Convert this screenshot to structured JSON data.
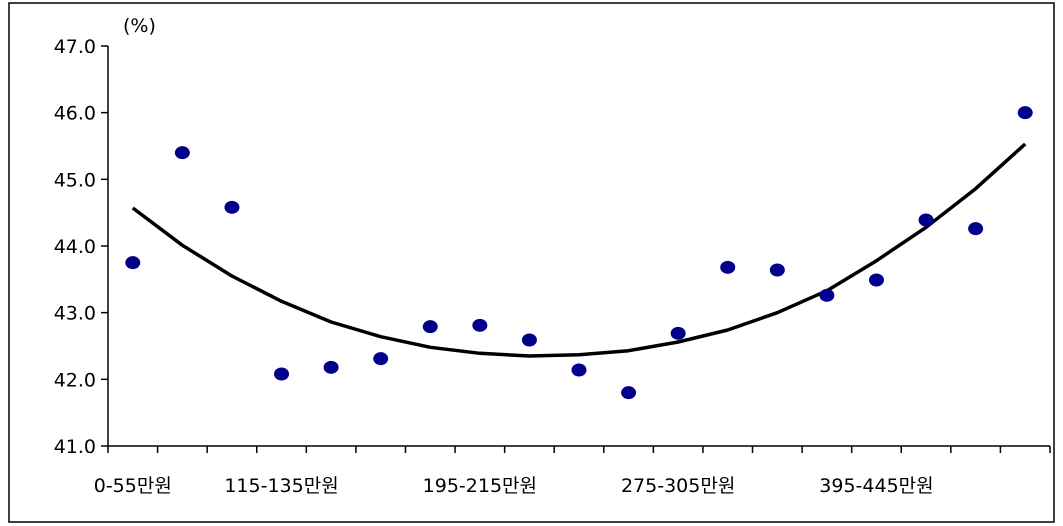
{
  "chart_data": {
    "type": "scatter",
    "unit_label": "(%)",
    "ylim": [
      41.0,
      47.0
    ],
    "y_ticks": [
      "41.0",
      "42.0",
      "43.0",
      "44.0",
      "45.0",
      "46.0",
      "47.0"
    ],
    "x_tick_labels": [
      "0-55만원",
      "115-135만원",
      "195-215만원",
      "275-305만원",
      "395-445만원"
    ],
    "x_tick_label_positions": [
      0,
      3,
      7,
      11,
      15
    ],
    "num_categories": 19,
    "values": [
      43.75,
      45.4,
      44.58,
      42.08,
      42.18,
      42.31,
      42.79,
      42.81,
      42.59,
      42.14,
      41.8,
      42.69,
      43.68,
      43.64,
      43.26,
      43.49,
      44.39,
      44.26,
      46.0
    ],
    "trend_values": [
      44.57,
      44.01,
      43.55,
      43.17,
      42.86,
      42.64,
      42.48,
      42.39,
      42.35,
      42.37,
      42.43,
      42.56,
      42.74,
      43.0,
      43.33,
      43.78,
      44.28,
      44.86,
      45.53
    ],
    "marker_color": "#00008b",
    "trend_color": "#000000",
    "grid": false,
    "legend": "none"
  }
}
